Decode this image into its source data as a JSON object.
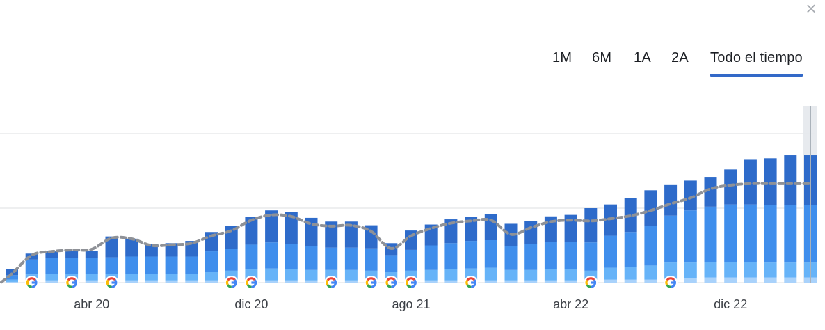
{
  "close_label": "×",
  "tabs": [
    {
      "label": "1M",
      "active": false
    },
    {
      "label": "6M",
      "active": false
    },
    {
      "label": "1A",
      "active": false
    },
    {
      "label": "2A",
      "active": false
    },
    {
      "label": "Todo el tiempo",
      "active": true
    }
  ],
  "colors": {
    "series_dark": "#2e6bca",
    "series_mid": "#3f8eec",
    "series_light": "#66b3f8",
    "series_pale": "#a9d2fb",
    "series_orange": "#f2b35a",
    "trend_line": "#8e9197",
    "gridline": "#e3e5e8",
    "accent": "#3369c8"
  },
  "chart_data": {
    "type": "bar",
    "stacked": true,
    "title": "",
    "xlabel": "",
    "ylabel": "",
    "ylim": [
      0,
      300
    ],
    "gridlines": [
      100,
      200
    ],
    "x_tick_labels": [
      {
        "label": "abr 20",
        "index": 4
      },
      {
        "label": "dic 20",
        "index": 12
      },
      {
        "label": "ago 21",
        "index": 20
      },
      {
        "label": "abr 22",
        "index": 28
      },
      {
        "label": "dic 22",
        "index": 36
      }
    ],
    "series": [
      {
        "color_key": "series_orange",
        "values": [
          0,
          0,
          0,
          0,
          0,
          0,
          0,
          0,
          0,
          0,
          0,
          0,
          0,
          0,
          0,
          0,
          0,
          0,
          0,
          0,
          0,
          0,
          0,
          0,
          0,
          0,
          0,
          0,
          0,
          0,
          0,
          0,
          0,
          0,
          0,
          0,
          0,
          0,
          0,
          0,
          0
        ]
      },
      {
        "color_key": "series_pale",
        "values": [
          1,
          3,
          3,
          3,
          3,
          3,
          3,
          3,
          3,
          3,
          3,
          3,
          3,
          3,
          3,
          3,
          3,
          3,
          3,
          3,
          3,
          3,
          3,
          3,
          3,
          3,
          3,
          3,
          3,
          3,
          4,
          4,
          4,
          5,
          6,
          7,
          7,
          7,
          7,
          7,
          7
        ]
      },
      {
        "color_key": "series_light",
        "values": [
          3,
          8,
          9,
          9,
          9,
          9,
          9,
          9,
          9,
          9,
          11,
          13,
          15,
          16,
          15,
          14,
          14,
          14,
          13,
          11,
          13,
          14,
          15,
          16,
          17,
          14,
          14,
          15,
          15,
          13,
          16,
          17,
          19,
          22,
          21,
          21,
          21,
          21,
          20,
          20,
          20
        ]
      },
      {
        "color_key": "series_mid",
        "values": [
          6,
          20,
          21,
          21,
          21,
          22,
          23,
          23,
          23,
          23,
          28,
          29,
          33,
          35,
          34,
          32,
          30,
          30,
          30,
          23,
          28,
          33,
          35,
          37,
          37,
          32,
          35,
          37,
          37,
          38,
          43,
          47,
          53,
          63,
          70,
          74,
          77,
          77,
          77,
          77,
          77
        ]
      },
      {
        "color_key": "series_dark",
        "values": [
          8,
          8,
          9,
          10,
          10,
          28,
          24,
          17,
          18,
          21,
          26,
          31,
          37,
          43,
          43,
          38,
          35,
          35,
          31,
          16,
          26,
          28,
          32,
          32,
          35,
          30,
          31,
          34,
          36,
          46,
          42,
          46,
          48,
          41,
          40,
          40,
          47,
          60,
          63,
          67,
          67
        ]
      }
    ],
    "trend_line": [
      10,
      35,
      40,
      42,
      43,
      58,
      57,
      48,
      49,
      51,
      61,
      68,
      82,
      89,
      87,
      77,
      74,
      75,
      67,
      44,
      61,
      71,
      78,
      81,
      82,
      63,
      72,
      80,
      82,
      81,
      84,
      88,
      95,
      104,
      112,
      124,
      129,
      131,
      131,
      131,
      131
    ],
    "google_markers": [
      1,
      3,
      5,
      11,
      12,
      16,
      18,
      19,
      20,
      23,
      29,
      33
    ]
  }
}
